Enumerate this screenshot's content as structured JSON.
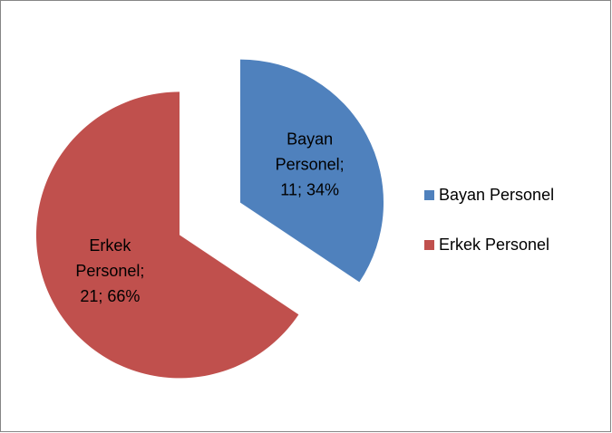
{
  "chart_data": {
    "type": "pie",
    "categories": [
      "Bayan Personel",
      "Erkek Personel"
    ],
    "values": [
      11,
      21
    ],
    "value_labels": [
      [
        "Bayan",
        "Personel;",
        "11; 34%"
      ],
      [
        "Erkek",
        "Personel;",
        "21; 66%"
      ]
    ],
    "colors": [
      "#4f81bd",
      "#c0504d"
    ],
    "legend": "right"
  }
}
